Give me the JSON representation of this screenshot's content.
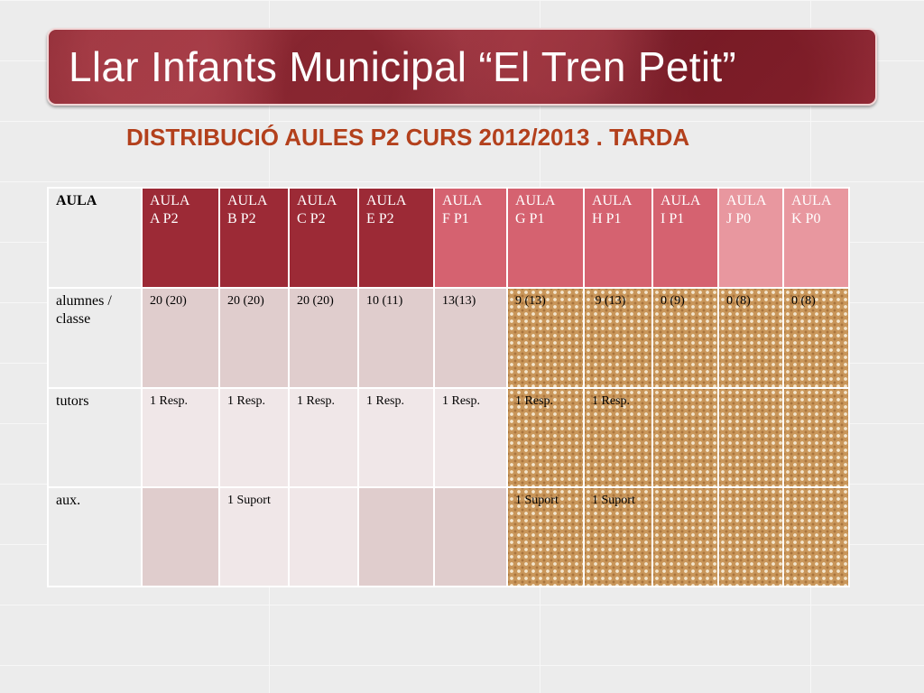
{
  "title": "Llar Infants Municipal “El Tren Petit”",
  "subtitle": "DISTRIBUCIÓ AULES P2 CURS 2012/2013 . TARDA",
  "table": {
    "corner_label": "AULA",
    "headers": [
      "AULA\nA P2",
      "AULA\nB P2",
      "AULA\nC P2",
      "AULA\nE P2",
      "AULA\nF P1",
      "AULA\nG P1",
      "AULA\nH P1",
      "AULA\nI   P1",
      "AULA\nJ P0",
      "AULA\nK P0"
    ],
    "rows": [
      {
        "label": "alumnes / classe",
        "cells": [
          "20 (20)",
          "20 (20)",
          "20 (20)",
          "10 (11)",
          "13(13)",
          "9 (13)",
          " 9 (13)",
          "0 (9)",
          "0 (8)",
          "0 (8)"
        ]
      },
      {
        "label": "tutors",
        "cells": [
          "1 Resp.",
          "1 Resp.",
          "1 Resp.",
          "1 Resp.",
          "1 Resp.",
          "1 Resp.",
          "1 Resp.",
          "",
          "",
          ""
        ]
      },
      {
        "label": "aux.",
        "cells": [
          "",
          "1 Suport",
          "",
          "",
          "",
          "1 Suport",
          "1 Suport",
          "",
          "",
          ""
        ]
      }
    ]
  },
  "colors": {
    "header_dark": "#9c2a36",
    "header_mid": "#d56270",
    "header_light": "#e8979f",
    "subtitle": "#b3401c"
  }
}
